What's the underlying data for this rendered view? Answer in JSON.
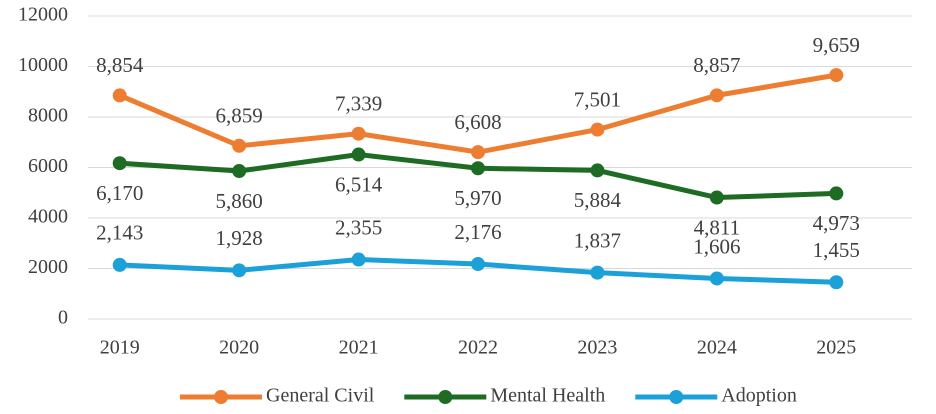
{
  "chart_data": {
    "type": "line",
    "categories": [
      "2019",
      "2020",
      "2021",
      "2022",
      "2023",
      "2024",
      "2025"
    ],
    "series": [
      {
        "name": "General Civil",
        "color": "#ed7d31",
        "values": [
          8854,
          6859,
          7339,
          6608,
          7501,
          8857,
          9659
        ],
        "value_labels": [
          "8,854",
          "6,859",
          "7,339",
          "6,608",
          "7,501",
          "8,857",
          "9,659"
        ]
      },
      {
        "name": "Mental Health",
        "color": "#1e6b24",
        "values": [
          6170,
          5860,
          6514,
          5970,
          5884,
          4811,
          4973
        ],
        "value_labels": [
          "6,170",
          "5,860",
          "6,514",
          "5,970",
          "5,884",
          "4,811",
          "4,973"
        ]
      },
      {
        "name": "Adoption",
        "color": "#1ba1d8",
        "values": [
          2143,
          1928,
          2355,
          2176,
          1837,
          1606,
          1455
        ],
        "value_labels": [
          "2,143",
          "1,928",
          "2,355",
          "2,176",
          "1,837",
          "1,606",
          "1,455"
        ]
      }
    ],
    "ylim": [
      0,
      12000
    ],
    "yticks": [
      0,
      2000,
      4000,
      6000,
      8000,
      10000,
      12000
    ],
    "grid": true,
    "legend": "bottom"
  }
}
